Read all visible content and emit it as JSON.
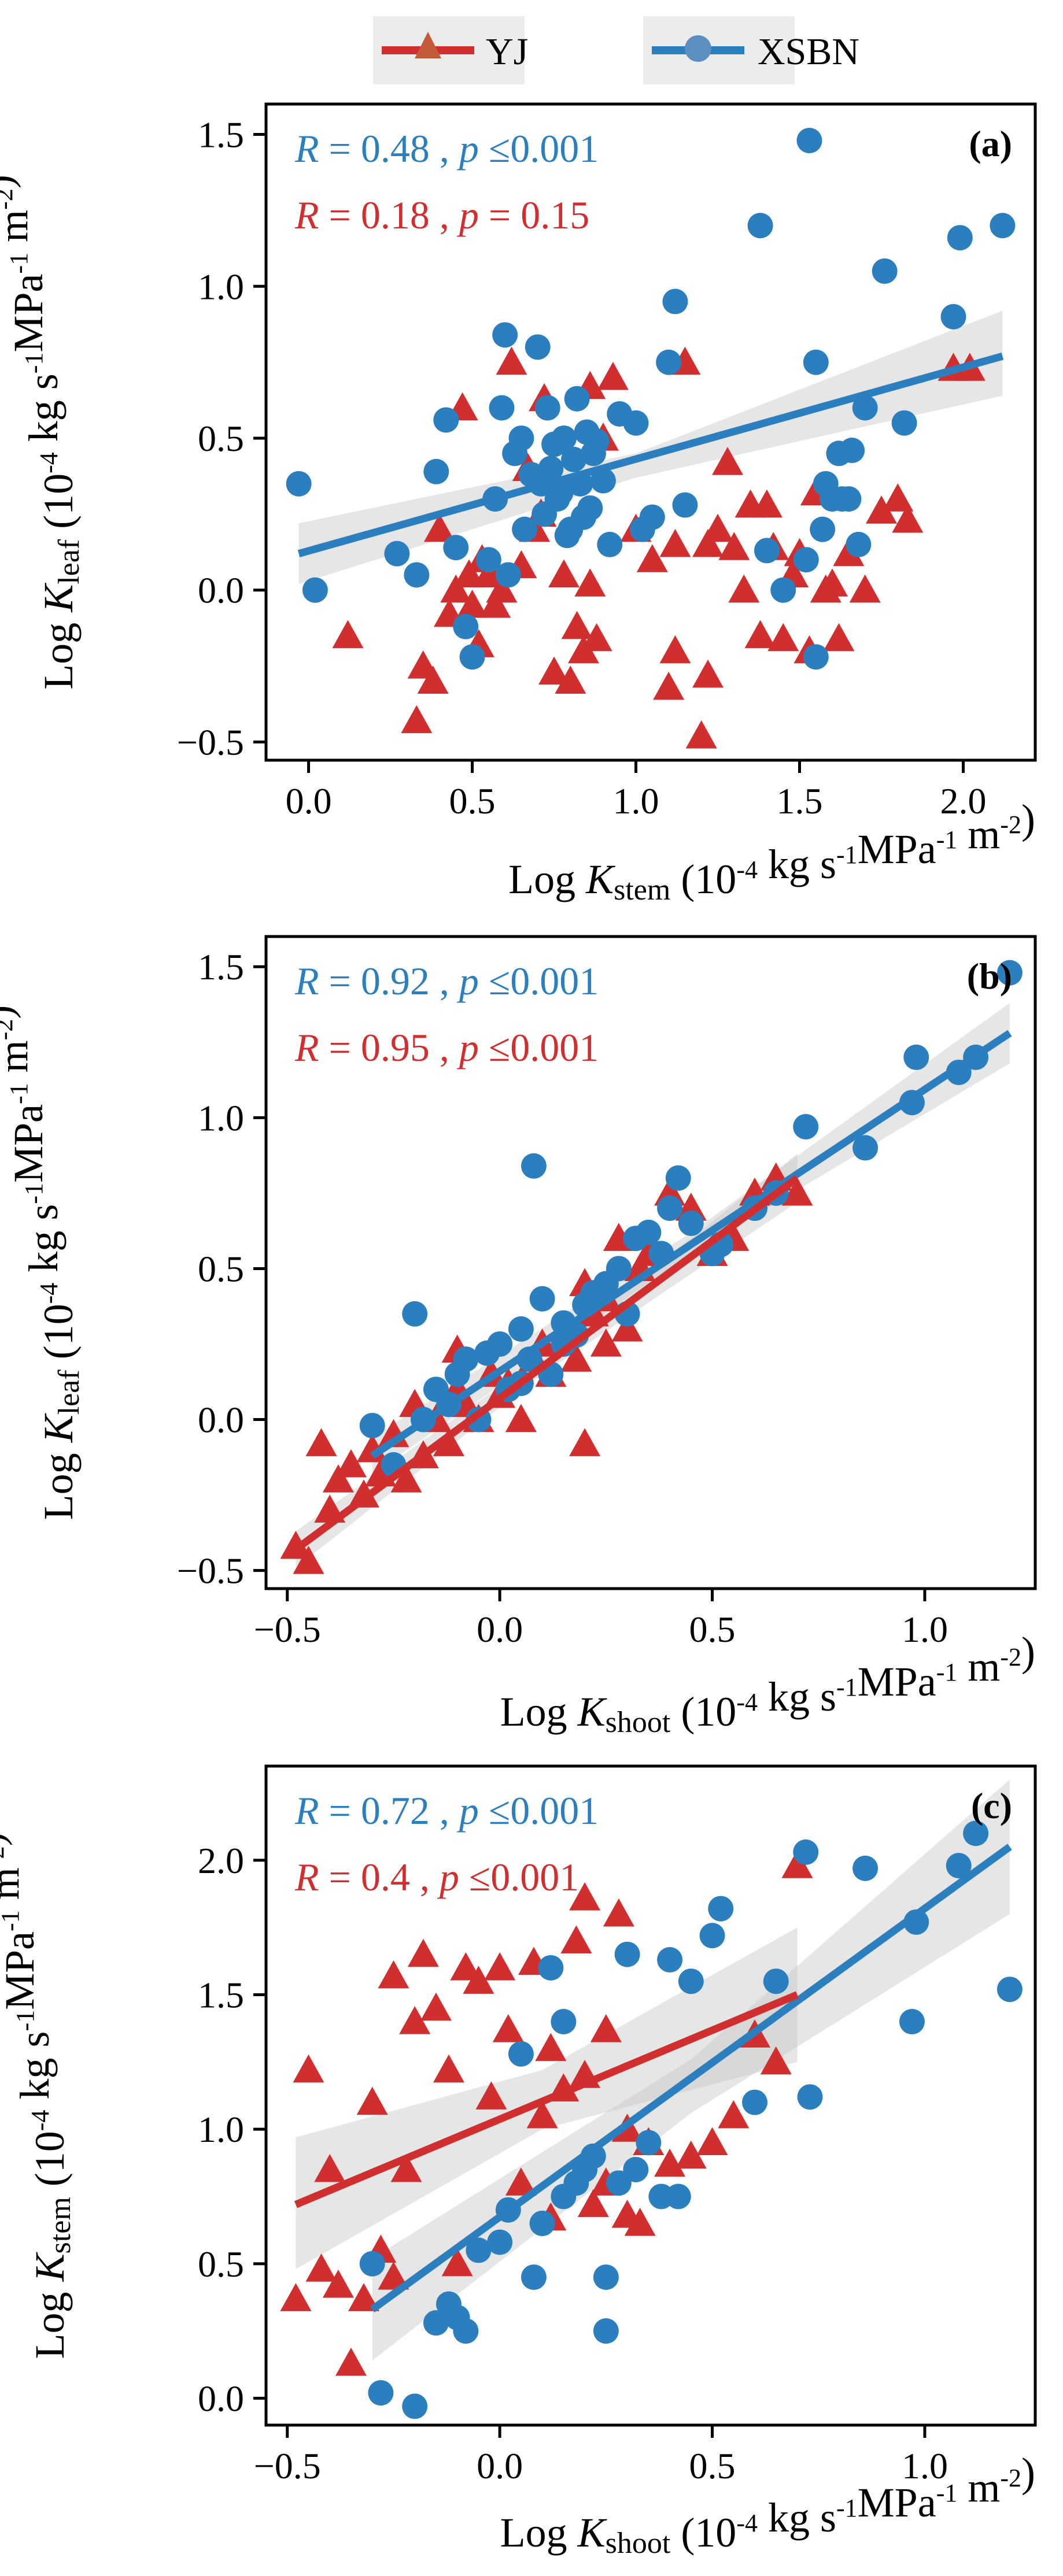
{
  "colors": {
    "yj": "#d12f2f",
    "xsbn": "#2b7fbf",
    "band": "#c8c8c8",
    "axis": "#000000"
  },
  "legend": {
    "items": [
      {
        "key": "yj",
        "label": "YJ",
        "marker": "triangle"
      },
      {
        "key": "xsbn",
        "label": "XSBN",
        "marker": "circle"
      }
    ]
  },
  "units_text": "(10-4 kg s-1MPa-1 m-2)",
  "chart_data": [
    {
      "id": "a",
      "type": "scatter",
      "panel_label": "(a)",
      "xlabel": {
        "prefix": "Log ",
        "var": "K",
        "sub": "stem",
        "unit": "(10-4 kg s-1MPa-1 m-2)"
      },
      "ylabel": {
        "prefix": "Log ",
        "var": "K",
        "sub": "leaf",
        "unit": "(10-4 kg s-1MPa-1 m-2)"
      },
      "xlim": [
        -0.13,
        2.22
      ],
      "ylim": [
        -0.56,
        1.6
      ],
      "xticks": [
        0.0,
        0.5,
        1.0,
        1.5,
        2.0
      ],
      "xtick_labels": [
        "0.0",
        "0.5",
        "1.0",
        "1.5",
        "2.0"
      ],
      "yticks": [
        -0.5,
        0.0,
        0.5,
        1.0,
        1.5
      ],
      "ytick_labels": [
        "−0.5",
        "0.0",
        "0.5",
        "1.0",
        "1.5"
      ],
      "grid": false,
      "stats": [
        {
          "series": "xsbn",
          "R_text": "R = 0.48",
          "p_text": "p ≤0.001"
        },
        {
          "series": "yj",
          "R_text": "R = 0.18",
          "p_text": "p = 0.15"
        }
      ],
      "series": [
        {
          "name": "XSBN",
          "key": "xsbn",
          "marker": "circle",
          "x": [
            -0.03,
            0.02,
            0.27,
            0.33,
            0.39,
            0.42,
            0.45,
            0.48,
            0.5,
            0.55,
            0.57,
            0.59,
            0.6,
            0.61,
            0.63,
            0.65,
            0.66,
            0.68,
            0.7,
            0.71,
            0.72,
            0.73,
            0.74,
            0.75,
            0.76,
            0.77,
            0.78,
            0.79,
            0.8,
            0.81,
            0.82,
            0.83,
            0.84,
            0.85,
            0.86,
            0.87,
            0.88,
            0.9,
            0.92,
            0.95,
            1.0,
            1.02,
            1.05,
            1.1,
            1.12,
            1.15,
            1.38,
            1.4,
            1.45,
            1.52,
            1.53,
            1.55,
            1.57,
            1.58,
            1.6,
            1.62,
            1.63,
            1.65,
            1.66,
            1.68,
            1.7,
            1.76,
            1.82,
            1.97,
            1.99,
            2.12,
            1.55
          ],
          "y": [
            0.35,
            0.0,
            0.12,
            0.05,
            0.39,
            0.56,
            0.14,
            -0.12,
            -0.22,
            0.1,
            0.3,
            0.6,
            0.84,
            0.05,
            0.45,
            0.5,
            0.2,
            0.38,
            0.8,
            0.35,
            0.25,
            0.6,
            0.4,
            0.48,
            0.3,
            0.32,
            0.5,
            0.18,
            0.2,
            0.43,
            0.63,
            0.35,
            0.24,
            0.52,
            0.27,
            0.45,
            0.49,
            0.36,
            0.15,
            0.58,
            0.55,
            0.2,
            0.24,
            0.75,
            0.95,
            0.28,
            1.2,
            0.13,
            0.0,
            0.1,
            1.48,
            0.75,
            0.2,
            0.35,
            0.3,
            0.45,
            0.3,
            0.3,
            0.46,
            0.15,
            0.6,
            1.05,
            0.55,
            0.9,
            1.16,
            1.2,
            -0.22
          ]
        },
        {
          "name": "YJ",
          "key": "yj",
          "marker": "triangle",
          "x": [
            0.12,
            0.33,
            0.35,
            0.38,
            0.4,
            0.43,
            0.45,
            0.47,
            0.49,
            0.5,
            0.52,
            0.53,
            0.55,
            0.57,
            0.59,
            0.62,
            0.65,
            0.67,
            0.69,
            0.71,
            0.72,
            0.75,
            0.78,
            0.8,
            0.82,
            0.84,
            0.86,
            0.88,
            0.9,
            0.93,
            1.0,
            1.05,
            1.1,
            1.12,
            1.15,
            1.2,
            1.22,
            1.25,
            1.28,
            1.3,
            1.33,
            1.35,
            1.38,
            1.4,
            1.42,
            1.45,
            1.48,
            1.5,
            1.53,
            1.55,
            1.58,
            1.6,
            1.62,
            1.65,
            1.7,
            1.75,
            1.8,
            1.83,
            0.86,
            1.12,
            1.22,
            1.97,
            2.02
          ],
          "y": [
            -0.15,
            -0.43,
            -0.25,
            -0.3,
            0.2,
            -0.08,
            0.0,
            0.6,
            0.05,
            -0.05,
            -0.18,
            0.1,
            0.05,
            -0.05,
            0.0,
            0.75,
            0.08,
            0.4,
            0.2,
            0.25,
            0.63,
            -0.27,
            0.05,
            -0.3,
            -0.12,
            -0.2,
            0.67,
            -0.16,
            0.5,
            0.7,
            0.2,
            0.1,
            -0.32,
            0.15,
            0.75,
            -0.48,
            -0.28,
            0.2,
            0.42,
            0.14,
            0.0,
            0.28,
            -0.15,
            0.28,
            0.14,
            -0.16,
            0.05,
            0.12,
            -0.2,
            0.32,
            0.0,
            0.02,
            -0.16,
            0.12,
            0.0,
            0.26,
            0.3,
            0.23,
            0.02,
            -0.2,
            0.15,
            0.73,
            0.73
          ]
        }
      ],
      "fits": [
        {
          "series": "xsbn",
          "x": [
            -0.03,
            2.12
          ],
          "y": [
            0.12,
            0.77
          ],
          "band": [
            [
              -0.03,
              0.02,
              0.22
            ],
            [
              1.0,
              0.37,
              0.45
            ],
            [
              2.12,
              0.64,
              0.92
            ]
          ]
        }
      ]
    },
    {
      "id": "b",
      "type": "scatter",
      "panel_label": "(b)",
      "xlabel": {
        "prefix": "Log ",
        "var": "K",
        "sub": "shoot",
        "unit": "(10-4 kg s-1MPa-1 m-2)"
      },
      "ylabel": {
        "prefix": "Log ",
        "var": "K",
        "sub": "leaf",
        "unit": "(10-4 kg s-1MPa-1 m-2)"
      },
      "xlim": [
        -0.55,
        1.26
      ],
      "ylim": [
        -0.56,
        1.6
      ],
      "xticks": [
        -0.5,
        0.0,
        0.5,
        1.0
      ],
      "xtick_labels": [
        "−0.5",
        "0.0",
        "0.5",
        "1.0"
      ],
      "yticks": [
        -0.5,
        0.0,
        0.5,
        1.0,
        1.5
      ],
      "ytick_labels": [
        "−0.5",
        "0.0",
        "0.5",
        "1.0",
        "1.5"
      ],
      "grid": false,
      "stats": [
        {
          "series": "xsbn",
          "R_text": "R = 0.92",
          "p_text": "p ≤0.001"
        },
        {
          "series": "yj",
          "R_text": "R = 0.95",
          "p_text": "p ≤0.001"
        }
      ],
      "series": [
        {
          "name": "XSBN",
          "key": "xsbn",
          "marker": "circle",
          "x": [
            -0.3,
            -0.25,
            -0.2,
            -0.18,
            -0.15,
            -0.12,
            -0.1,
            -0.08,
            -0.05,
            -0.03,
            0.0,
            0.02,
            0.05,
            0.07,
            0.08,
            0.1,
            0.12,
            0.15,
            0.18,
            0.2,
            0.22,
            0.25,
            0.28,
            0.3,
            0.32,
            0.35,
            0.38,
            0.4,
            0.42,
            0.45,
            0.5,
            0.52,
            0.6,
            0.65,
            0.72,
            0.86,
            0.97,
            0.98,
            1.08,
            1.12,
            1.2,
            0.15,
            0.05
          ],
          "y": [
            -0.02,
            -0.15,
            0.35,
            0.0,
            0.1,
            0.05,
            0.15,
            0.2,
            0.0,
            0.22,
            0.25,
            0.1,
            0.3,
            0.2,
            0.84,
            0.4,
            0.15,
            0.32,
            0.28,
            0.38,
            0.42,
            0.45,
            0.5,
            0.35,
            0.6,
            0.62,
            0.55,
            0.7,
            0.8,
            0.65,
            0.55,
            0.58,
            0.7,
            0.75,
            0.97,
            0.9,
            1.05,
            1.2,
            1.15,
            1.2,
            1.48,
            0.25,
            0.12
          ]
        },
        {
          "name": "YJ",
          "key": "yj",
          "marker": "triangle",
          "x": [
            -0.48,
            -0.45,
            -0.42,
            -0.4,
            -0.38,
            -0.35,
            -0.32,
            -0.3,
            -0.28,
            -0.25,
            -0.22,
            -0.2,
            -0.18,
            -0.15,
            -0.12,
            -0.1,
            -0.08,
            -0.05,
            -0.02,
            0.0,
            0.02,
            0.05,
            0.08,
            0.1,
            0.12,
            0.15,
            0.18,
            0.2,
            0.22,
            0.25,
            0.28,
            0.3,
            0.33,
            0.35,
            0.4,
            0.45,
            0.5,
            0.55,
            0.6,
            0.65,
            0.7,
            -0.1,
            0.2,
            0.25
          ],
          "y": [
            -0.42,
            -0.47,
            -0.08,
            -0.3,
            -0.2,
            -0.15,
            -0.25,
            -0.1,
            -0.18,
            -0.05,
            -0.2,
            0.05,
            -0.12,
            0.0,
            -0.08,
            0.1,
            0.05,
            0.0,
            0.15,
            0.08,
            0.12,
            0.0,
            0.2,
            0.25,
            0.15,
            0.3,
            0.2,
            0.45,
            0.35,
            0.4,
            0.6,
            0.3,
            0.5,
            0.55,
            0.75,
            0.7,
            0.55,
            0.6,
            0.75,
            0.8,
            0.75,
            0.23,
            -0.08,
            0.25
          ]
        }
      ],
      "fits": [
        {
          "series": "xsbn",
          "x": [
            -0.3,
            1.2
          ],
          "y": [
            -0.12,
            1.28
          ],
          "band": [
            [
              -0.3,
              -0.18,
              -0.06
            ],
            [
              0.45,
              0.55,
              0.62
            ],
            [
              1.2,
              1.18,
              1.38
            ]
          ]
        },
        {
          "series": "yj",
          "x": [
            -0.48,
            0.7
          ],
          "y": [
            -0.43,
            0.8
          ],
          "band": [
            [
              -0.48,
              -0.49,
              -0.37
            ],
            [
              0.1,
              0.15,
              0.21
            ],
            [
              0.7,
              0.72,
              0.88
            ]
          ]
        }
      ]
    },
    {
      "id": "c",
      "type": "scatter",
      "panel_label": "(c)",
      "xlabel": {
        "prefix": "Log ",
        "var": "K",
        "sub": "shoot",
        "unit": "(10-4 kg s-1MPa-1 m-2)"
      },
      "ylabel": {
        "prefix": "Log ",
        "var": "K",
        "sub": "stem",
        "unit": "(10-4 kg s-1MPa-1 m-2)"
      },
      "xlim": [
        -0.55,
        1.26
      ],
      "ylim": [
        -0.1,
        2.35
      ],
      "xticks": [
        -0.5,
        0.0,
        0.5,
        1.0
      ],
      "xtick_labels": [
        "−0.5",
        "0.0",
        "0.5",
        "1.0"
      ],
      "yticks": [
        0.0,
        0.5,
        1.0,
        1.5,
        2.0
      ],
      "ytick_labels": [
        "0.0",
        "0.5",
        "1.0",
        "1.5",
        "2.0"
      ],
      "grid": false,
      "stats": [
        {
          "series": "xsbn",
          "R_text": "R = 0.72",
          "p_text": "p ≤0.001"
        },
        {
          "series": "yj",
          "R_text": "R = 0.4",
          "p_text": "p ≤0.001"
        }
      ],
      "series": [
        {
          "name": "XSBN",
          "key": "xsbn",
          "marker": "circle",
          "x": [
            -0.3,
            -0.28,
            -0.2,
            -0.15,
            -0.12,
            -0.1,
            -0.08,
            -0.05,
            0.0,
            0.02,
            0.05,
            0.08,
            0.1,
            0.12,
            0.15,
            0.18,
            0.2,
            0.22,
            0.25,
            0.28,
            0.3,
            0.32,
            0.35,
            0.38,
            0.4,
            0.42,
            0.45,
            0.5,
            0.52,
            0.6,
            0.65,
            0.72,
            0.73,
            0.86,
            0.97,
            0.98,
            1.08,
            1.12,
            1.2,
            0.15,
            0.25,
            0.1
          ],
          "y": [
            0.5,
            0.02,
            -0.03,
            0.28,
            0.35,
            0.3,
            0.25,
            0.55,
            0.58,
            0.7,
            1.28,
            0.45,
            0.65,
            1.6,
            1.4,
            0.8,
            0.85,
            0.9,
            0.45,
            0.8,
            1.65,
            0.85,
            0.95,
            0.75,
            1.63,
            0.75,
            1.55,
            1.72,
            1.82,
            1.1,
            1.55,
            2.03,
            1.12,
            1.97,
            1.4,
            1.77,
            1.98,
            2.1,
            1.52,
            0.75,
            0.25,
            0.65
          ]
        },
        {
          "name": "YJ",
          "key": "yj",
          "marker": "triangle",
          "x": [
            -0.48,
            -0.45,
            -0.42,
            -0.4,
            -0.38,
            -0.35,
            -0.32,
            -0.3,
            -0.28,
            -0.25,
            -0.22,
            -0.2,
            -0.18,
            -0.15,
            -0.12,
            -0.1,
            -0.08,
            -0.05,
            -0.02,
            0.0,
            0.02,
            0.05,
            0.08,
            0.1,
            0.12,
            0.15,
            0.18,
            0.2,
            0.22,
            0.25,
            0.28,
            0.3,
            0.33,
            0.35,
            0.4,
            0.45,
            0.5,
            0.55,
            0.6,
            0.65,
            0.7,
            -0.25,
            0.2,
            0.25,
            0.12,
            0.3
          ],
          "y": [
            0.37,
            1.22,
            0.48,
            0.85,
            0.42,
            0.13,
            0.37,
            1.1,
            0.55,
            1.57,
            0.85,
            1.4,
            1.65,
            1.45,
            1.22,
            0.5,
            1.6,
            1.55,
            1.12,
            1.6,
            1.37,
            0.8,
            1.62,
            1.05,
            0.67,
            1.15,
            1.7,
            1.86,
            0.72,
            1.37,
            1.8,
            0.68,
            0.65,
            0.95,
            0.87,
            0.9,
            0.95,
            1.05,
            1.35,
            1.25,
            1.98,
            0.45,
            1.2,
            0.8,
            1.3,
            1.0
          ]
        }
      ],
      "fits": [
        {
          "series": "xsbn",
          "x": [
            -0.3,
            1.2
          ],
          "y": [
            0.33,
            2.05
          ],
          "band": [
            [
              -0.3,
              0.14,
              0.52
            ],
            [
              0.45,
              1.06,
              1.26
            ],
            [
              1.2,
              1.8,
              2.3
            ]
          ]
        },
        {
          "series": "yj",
          "x": [
            -0.48,
            0.7
          ],
          "y": [
            0.72,
            1.5
          ],
          "band": [
            [
              -0.48,
              0.48,
              0.97
            ],
            [
              0.1,
              1.0,
              1.22
            ],
            [
              0.7,
              1.25,
              1.75
            ]
          ]
        }
      ]
    }
  ]
}
